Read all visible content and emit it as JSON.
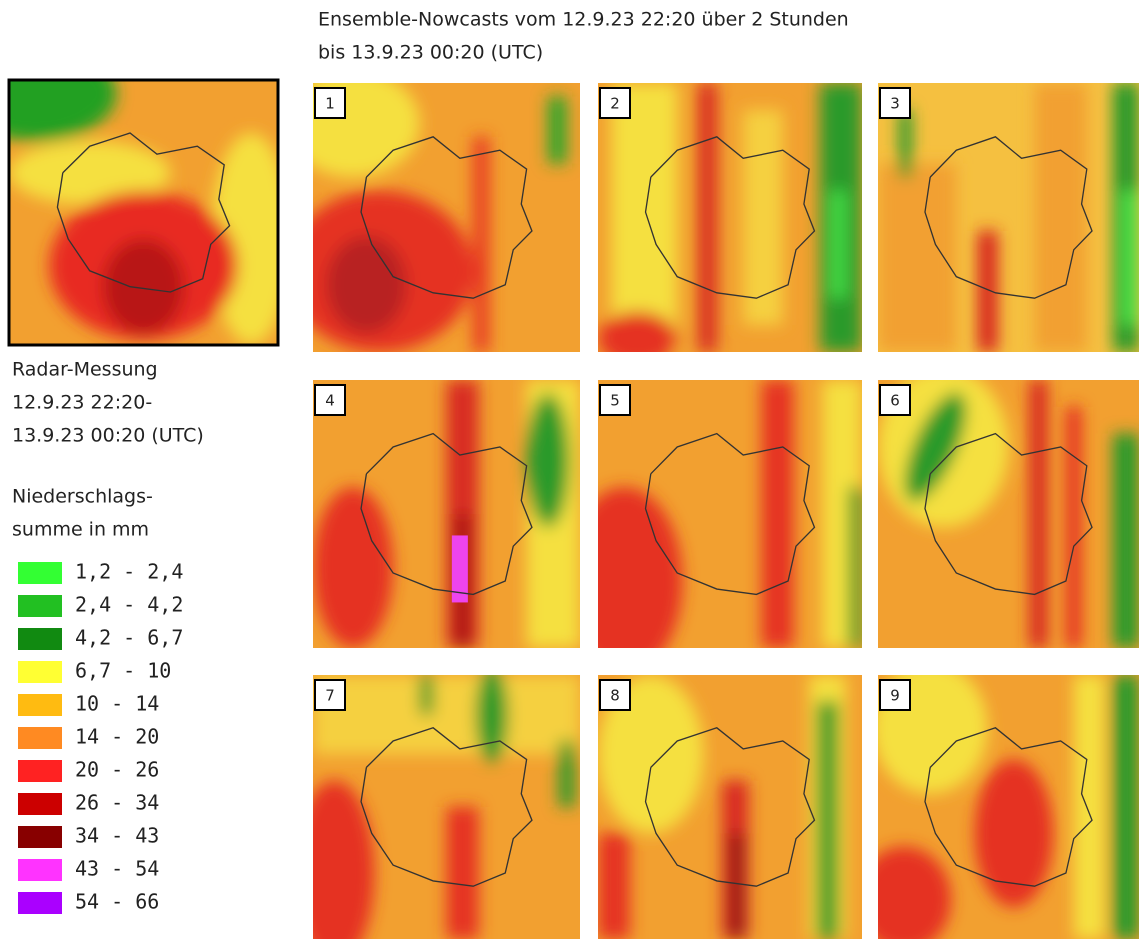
{
  "title": [
    "Ensemble-Nowcasts vom 12.9.23 22:20 über 2 Stunden",
    "bis 13.9.23 00:20 (UTC)"
  ],
  "radar": {
    "caption": [
      "Radar-Messung",
      "12.9.23 22:20-",
      "13.9.23 00:20 (UTC)"
    ]
  },
  "legend": {
    "title": [
      "Niederschlags-",
      "summe in mm"
    ],
    "items": [
      {
        "label": "1,2 - 2,4",
        "color": "#33ff33"
      },
      {
        "label": "2,4 - 4,2",
        "color": "#22c022"
      },
      {
        "label": "4,2 - 6,7",
        "color": "#118a11"
      },
      {
        "label": "6,7 - 10",
        "color": "#ffff33"
      },
      {
        "label": "10 - 14",
        "color": "#ffbb11"
      },
      {
        "label": "14 - 20",
        "color": "#ff8a22"
      },
      {
        "label": "20 - 26",
        "color": "#ff2222"
      },
      {
        "label": "26 - 34",
        "color": "#cc0000"
      },
      {
        "label": "34 - 43",
        "color": "#880000"
      },
      {
        "label": "43 - 54",
        "color": "#ff33ff"
      },
      {
        "label": "54 - 66",
        "color": "#aa00ff"
      }
    ]
  },
  "panels": [
    {
      "label": "1"
    },
    {
      "label": "2"
    },
    {
      "label": "3"
    },
    {
      "label": "4"
    },
    {
      "label": "5"
    },
    {
      "label": "6"
    },
    {
      "label": "7"
    },
    {
      "label": "8"
    },
    {
      "label": "9"
    }
  ]
}
